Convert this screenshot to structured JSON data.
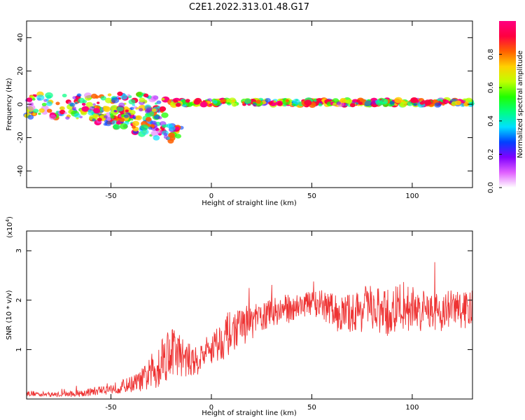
{
  "title": "C2E1.2022.313.01.48.G17",
  "chart_data": [
    {
      "type": "heatmap",
      "xlabel": "Height of straight line (km)",
      "ylabel": "Frequency (Hz)",
      "xlim": [
        -92,
        130
      ],
      "ylim": [
        -50,
        50
      ],
      "xticks": [
        -50,
        0,
        50,
        100
      ],
      "xtick_labels": [
        "-50",
        "0",
        "50",
        "100"
      ],
      "yticks": [
        -40,
        -20,
        0,
        20,
        40
      ],
      "ytick_labels": [
        "-40",
        "-20",
        "0",
        "20",
        "40"
      ],
      "colorbar": {
        "label": "Normalized spectral amplitude",
        "range": [
          0,
          1
        ],
        "ticks": [
          0.0,
          0.2,
          0.4,
          0.6,
          0.8
        ],
        "tick_labels": [
          "0.0",
          "0.2",
          "0.4",
          "0.6",
          "0.8"
        ],
        "colors": [
          "#ffffff",
          "#e060ff",
          "#8000ff",
          "#0040ff",
          "#00e0ff",
          "#00ff80",
          "#20ff00",
          "#c0ff00",
          "#ffd000",
          "#ff6000",
          "#ff0040",
          "#ff0080"
        ]
      },
      "band_segments": [
        {
          "x_range": [
            -92,
            -22
          ],
          "freq": -4,
          "spread": 7,
          "note": "upper scattered branch near +3 Hz, lower branch near -5 Hz"
        },
        {
          "x_range": [
            -60,
            -15
          ],
          "freq": -12,
          "spread": 10,
          "note": "descending tail to about -20 Hz"
        },
        {
          "x_range": [
            -20,
            130
          ],
          "freq": 1,
          "spread": 3,
          "note": "stable band near 0 to 2 Hz, strong red peaks"
        }
      ]
    },
    {
      "type": "line",
      "xlabel": "Height of straight line (km)",
      "ylabel": "SNR (10 * v/v)",
      "scale_label": "(x10",
      "scale_exponent": "4",
      "scale_close": ")",
      "xlim": [
        -92,
        130
      ],
      "ylim": [
        0,
        3.4
      ],
      "xticks": [
        -50,
        0,
        50,
        100
      ],
      "xtick_labels": [
        "-50",
        "0",
        "50",
        "100"
      ],
      "yticks": [
        1,
        2,
        3
      ],
      "ytick_labels": [
        "1",
        "2",
        "3"
      ],
      "series": [
        {
          "name": "SNR",
          "color": "#ee3333",
          "x": [
            -92,
            -85,
            -78,
            -70,
            -62,
            -55,
            -48,
            -42,
            -36,
            -32,
            -28,
            -24,
            -20,
            -16,
            -12,
            -8,
            -4,
            0,
            4,
            8,
            12,
            16,
            20,
            25,
            30,
            35,
            40,
            45,
            50,
            55,
            60,
            65,
            70,
            75,
            80,
            85,
            90,
            95,
            100,
            105,
            110,
            115,
            120,
            125,
            130
          ],
          "y": [
            0.12,
            0.1,
            0.09,
            0.1,
            0.13,
            0.18,
            0.22,
            0.28,
            0.35,
            0.45,
            0.6,
            0.85,
            1.0,
            0.9,
            0.8,
            0.75,
            0.9,
            1.05,
            1.15,
            1.3,
            1.4,
            1.5,
            1.55,
            1.65,
            1.75,
            1.8,
            1.85,
            1.9,
            1.95,
            1.9,
            1.8,
            1.7,
            1.75,
            1.8,
            1.85,
            1.7,
            1.75,
            1.9,
            1.85,
            1.8,
            1.8,
            1.75,
            1.85,
            1.8,
            1.8
          ],
          "noise": [
            0.06,
            0.05,
            0.05,
            0.06,
            0.08,
            0.1,
            0.12,
            0.15,
            0.2,
            0.3,
            0.45,
            0.55,
            0.55,
            0.45,
            0.35,
            0.3,
            0.3,
            0.35,
            0.4,
            0.45,
            0.4,
            0.4,
            0.35,
            0.3,
            0.3,
            0.3,
            0.3,
            0.25,
            0.25,
            0.3,
            0.35,
            0.4,
            0.4,
            0.45,
            0.45,
            0.5,
            0.5,
            0.5,
            0.45,
            0.4,
            0.4,
            0.4,
            0.4,
            0.4,
            0.4
          ]
        }
      ]
    }
  ]
}
